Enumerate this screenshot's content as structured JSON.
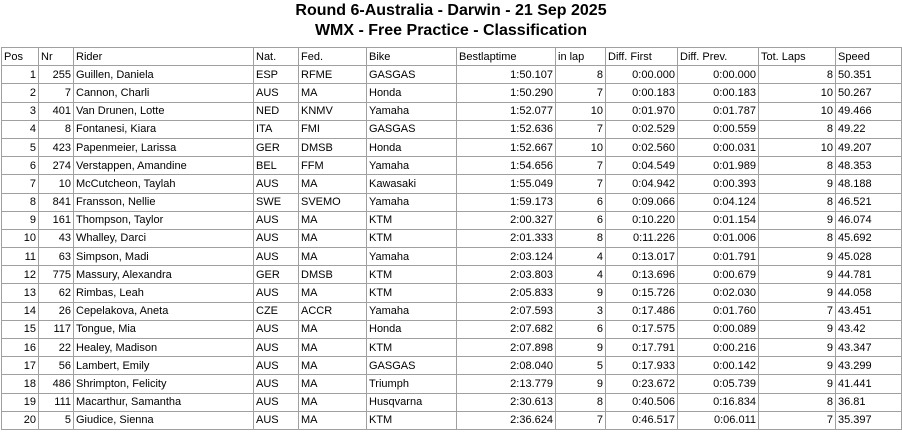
{
  "header": {
    "title": "Round 6-Australia - Darwin - 21 Sep 2025",
    "subtitle": "WMX - Free Practice - Classification"
  },
  "table": {
    "columns": [
      "Pos",
      "Nr",
      "Rider",
      "Nat.",
      "Fed.",
      "Bike",
      "Bestlaptime",
      "in lap",
      "Diff. First",
      "Diff. Prev.",
      "Tot. Laps",
      "Speed"
    ],
    "rows": [
      [
        "1",
        "255",
        "Guillen, Daniela",
        "ESP",
        "RFME",
        "GASGAS",
        "1:50.107",
        "8",
        "0:00.000",
        "0:00.000",
        "8",
        "50.351"
      ],
      [
        "2",
        "7",
        "Cannon, Charli",
        "AUS",
        "MA",
        "Honda",
        "1:50.290",
        "7",
        "0:00.183",
        "0:00.183",
        "10",
        "50.267"
      ],
      [
        "3",
        "401",
        "Van Drunen, Lotte",
        "NED",
        "KNMV",
        "Yamaha",
        "1:52.077",
        "10",
        "0:01.970",
        "0:01.787",
        "10",
        "49.466"
      ],
      [
        "4",
        "8",
        "Fontanesi, Kiara",
        "ITA",
        "FMI",
        "GASGAS",
        "1:52.636",
        "7",
        "0:02.529",
        "0:00.559",
        "8",
        "49.22"
      ],
      [
        "5",
        "423",
        "Papenmeier, Larissa",
        "GER",
        "DMSB",
        "Honda",
        "1:52.667",
        "10",
        "0:02.560",
        "0:00.031",
        "10",
        "49.207"
      ],
      [
        "6",
        "274",
        "Verstappen, Amandine",
        "BEL",
        "FFM",
        "Yamaha",
        "1:54.656",
        "7",
        "0:04.549",
        "0:01.989",
        "8",
        "48.353"
      ],
      [
        "7",
        "10",
        "McCutcheon, Taylah",
        "AUS",
        "MA",
        "Kawasaki",
        "1:55.049",
        "7",
        "0:04.942",
        "0:00.393",
        "9",
        "48.188"
      ],
      [
        "8",
        "841",
        "Fransson, Nellie",
        "SWE",
        "SVEMO",
        "Yamaha",
        "1:59.173",
        "6",
        "0:09.066",
        "0:04.124",
        "8",
        "46.521"
      ],
      [
        "9",
        "161",
        "Thompson, Taylor",
        "AUS",
        "MA",
        "KTM",
        "2:00.327",
        "6",
        "0:10.220",
        "0:01.154",
        "9",
        "46.074"
      ],
      [
        "10",
        "43",
        "Whalley, Darci",
        "AUS",
        "MA",
        "KTM",
        "2:01.333",
        "8",
        "0:11.226",
        "0:01.006",
        "8",
        "45.692"
      ],
      [
        "11",
        "63",
        "Simpson, Madi",
        "AUS",
        "MA",
        "Yamaha",
        "2:03.124",
        "4",
        "0:13.017",
        "0:01.791",
        "9",
        "45.028"
      ],
      [
        "12",
        "775",
        "Massury, Alexandra",
        "GER",
        "DMSB",
        "KTM",
        "2:03.803",
        "4",
        "0:13.696",
        "0:00.679",
        "9",
        "44.781"
      ],
      [
        "13",
        "62",
        "Rimbas, Leah",
        "AUS",
        "MA",
        "KTM",
        "2:05.833",
        "9",
        "0:15.726",
        "0:02.030",
        "9",
        "44.058"
      ],
      [
        "14",
        "26",
        "Cepelakova, Aneta",
        "CZE",
        "ACCR",
        "Yamaha",
        "2:07.593",
        "3",
        "0:17.486",
        "0:01.760",
        "7",
        "43.451"
      ],
      [
        "15",
        "117",
        "Tongue, Mia",
        "AUS",
        "MA",
        "Honda",
        "2:07.682",
        "6",
        "0:17.575",
        "0:00.089",
        "9",
        "43.42"
      ],
      [
        "16",
        "22",
        "Healey, Madison",
        "AUS",
        "MA",
        "KTM",
        "2:07.898",
        "9",
        "0:17.791",
        "0:00.216",
        "9",
        "43.347"
      ],
      [
        "17",
        "56",
        "Lambert, Emily",
        "AUS",
        "MA",
        "GASGAS",
        "2:08.040",
        "5",
        "0:17.933",
        "0:00.142",
        "9",
        "43.299"
      ],
      [
        "18",
        "486",
        "Shrimpton, Felicity",
        "AUS",
        "MA",
        "Triumph",
        "2:13.779",
        "9",
        "0:23.672",
        "0:05.739",
        "9",
        "41.441"
      ],
      [
        "19",
        "111",
        "Macarthur, Samantha",
        "AUS",
        "MA",
        "Husqvarna",
        "2:30.613",
        "8",
        "0:40.506",
        "0:16.834",
        "8",
        "36.81"
      ],
      [
        "20",
        "5",
        "Giudice, Sienna",
        "AUS",
        "MA",
        "KTM",
        "2:36.624",
        "7",
        "0:46.517",
        "0:06.011",
        "7",
        "35.397"
      ]
    ]
  }
}
